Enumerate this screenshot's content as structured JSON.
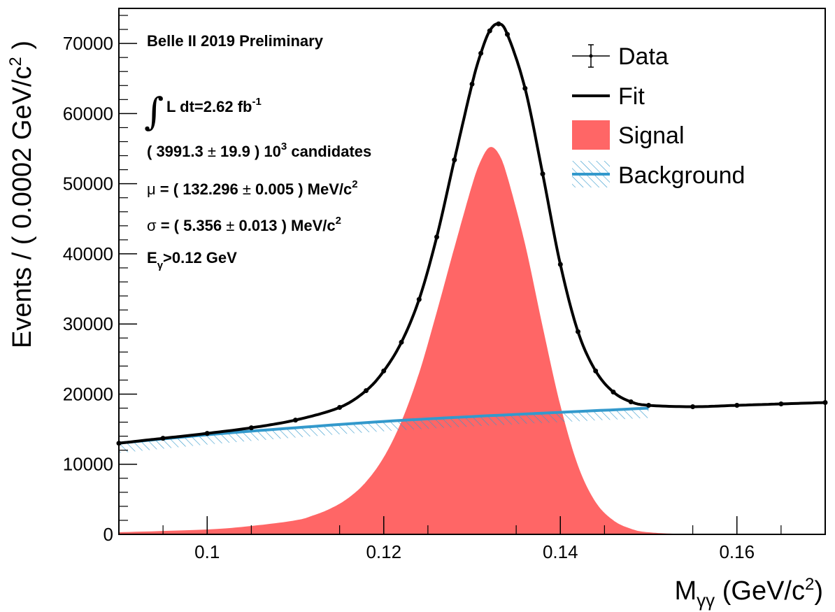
{
  "chart_data": {
    "type": "line",
    "xlabel": {
      "main": "M",
      "sub": "γγ",
      "unit_pre": " (GeV/c",
      "unit_sup": "2",
      "unit_post": ")"
    },
    "ylabel": {
      "main": "Events / ( 0.0002 GeV/c",
      "sup": "2",
      "post": " )"
    },
    "xlim": [
      0.09,
      0.17
    ],
    "ylim": [
      0,
      75000
    ],
    "xticks": [
      {
        "value": 0.1,
        "label": "0.1"
      },
      {
        "value": 0.12,
        "label": "0.12"
      },
      {
        "value": 0.14,
        "label": "0.14"
      },
      {
        "value": 0.16,
        "label": "0.16"
      }
    ],
    "yticks": [
      {
        "value": 0,
        "label": "0"
      },
      {
        "value": 10000,
        "label": "10000"
      },
      {
        "value": 20000,
        "label": "20000"
      },
      {
        "value": 30000,
        "label": "30000"
      },
      {
        "value": 40000,
        "label": "40000"
      },
      {
        "value": 50000,
        "label": "50000"
      },
      {
        "value": 60000,
        "label": "60000"
      },
      {
        "value": 70000,
        "label": "70000"
      }
    ],
    "legend_position": "top-right",
    "legend": [
      "Data",
      "Fit",
      "Signal",
      "Background"
    ],
    "annotations": {
      "experiment": "Belle II 2019 Preliminary",
      "lumi_integral": "∫",
      "lumi_text": "L dt=2.62 fb",
      "lumi_sup": "-1",
      "candidates_pre": "( 3991.3 ",
      "candidates_pm": "±",
      "candidates_val": " 19.9 ) 10",
      "candidates_sup": "3",
      "candidates_post": " candidates",
      "mu_symbol": "μ",
      "mu_pre": " = ( 132.296 ",
      "mu_pm": "±",
      "mu_post": " 0.005 ) MeV/c",
      "mu_sup": "2",
      "sigma_symbol": "σ",
      "sigma_pre": " = ( 5.356 ",
      "sigma_pm": "±",
      "sigma_post": " 0.013 ) MeV/c",
      "sigma_sup": "2",
      "ecut_main": "E",
      "ecut_sub": "γ",
      "ecut_post": ">0.12 GeV"
    },
    "series": [
      {
        "name": "Data",
        "x": [
          0.09,
          0.095,
          0.1,
          0.105,
          0.11,
          0.115,
          0.118,
          0.12,
          0.122,
          0.124,
          0.126,
          0.128,
          0.13,
          0.131,
          0.132,
          0.133,
          0.134,
          0.136,
          0.138,
          0.14,
          0.142,
          0.144,
          0.146,
          0.148,
          0.15,
          0.155,
          0.16,
          0.165,
          0.17
        ],
        "y": [
          13000,
          13700,
          14400,
          15200,
          16300,
          18100,
          20500,
          23300,
          27400,
          33500,
          42400,
          53400,
          64200,
          68600,
          71800,
          72800,
          71300,
          63600,
          51400,
          38500,
          28900,
          23300,
          20300,
          18900,
          18400,
          18200,
          18400,
          18600,
          18800
        ]
      },
      {
        "name": "Fit",
        "x": [
          0.09,
          0.095,
          0.1,
          0.105,
          0.11,
          0.115,
          0.118,
          0.12,
          0.122,
          0.124,
          0.126,
          0.128,
          0.13,
          0.131,
          0.132,
          0.133,
          0.134,
          0.136,
          0.138,
          0.14,
          0.142,
          0.144,
          0.146,
          0.148,
          0.15,
          0.155,
          0.16,
          0.165,
          0.17
        ],
        "y": [
          13000,
          13700,
          14400,
          15200,
          16300,
          18100,
          20500,
          23300,
          27400,
          33500,
          42400,
          53400,
          64200,
          68600,
          71800,
          72800,
          71300,
          63600,
          51400,
          38500,
          28900,
          23300,
          20300,
          18900,
          18400,
          18200,
          18400,
          18600,
          18800
        ]
      },
      {
        "name": "Signal",
        "x": [
          0.09,
          0.1,
          0.105,
          0.11,
          0.112,
          0.114,
          0.116,
          0.118,
          0.12,
          0.122,
          0.124,
          0.126,
          0.128,
          0.13,
          0.131,
          0.132,
          0.133,
          0.134,
          0.136,
          0.138,
          0.14,
          0.142,
          0.144,
          0.146,
          0.148,
          0.15,
          0.155,
          0.17
        ],
        "y": [
          300,
          700,
          1200,
          2000,
          2700,
          3700,
          5200,
          7500,
          11000,
          16100,
          23000,
          31700,
          40900,
          49800,
          53300,
          55200,
          54300,
          51000,
          41400,
          29600,
          18400,
          9800,
          4600,
          2000,
          800,
          300,
          50,
          0
        ]
      },
      {
        "name": "Background",
        "x": [
          0.09,
          0.1,
          0.11,
          0.12,
          0.13,
          0.14,
          0.15
        ],
        "y": [
          13000,
          14200,
          15200,
          16100,
          16800,
          17400,
          18000
        ]
      }
    ],
    "colors": {
      "data": "#000000",
      "fit": "#000000",
      "signal": "#ff6666",
      "background": "#3399cc"
    }
  }
}
